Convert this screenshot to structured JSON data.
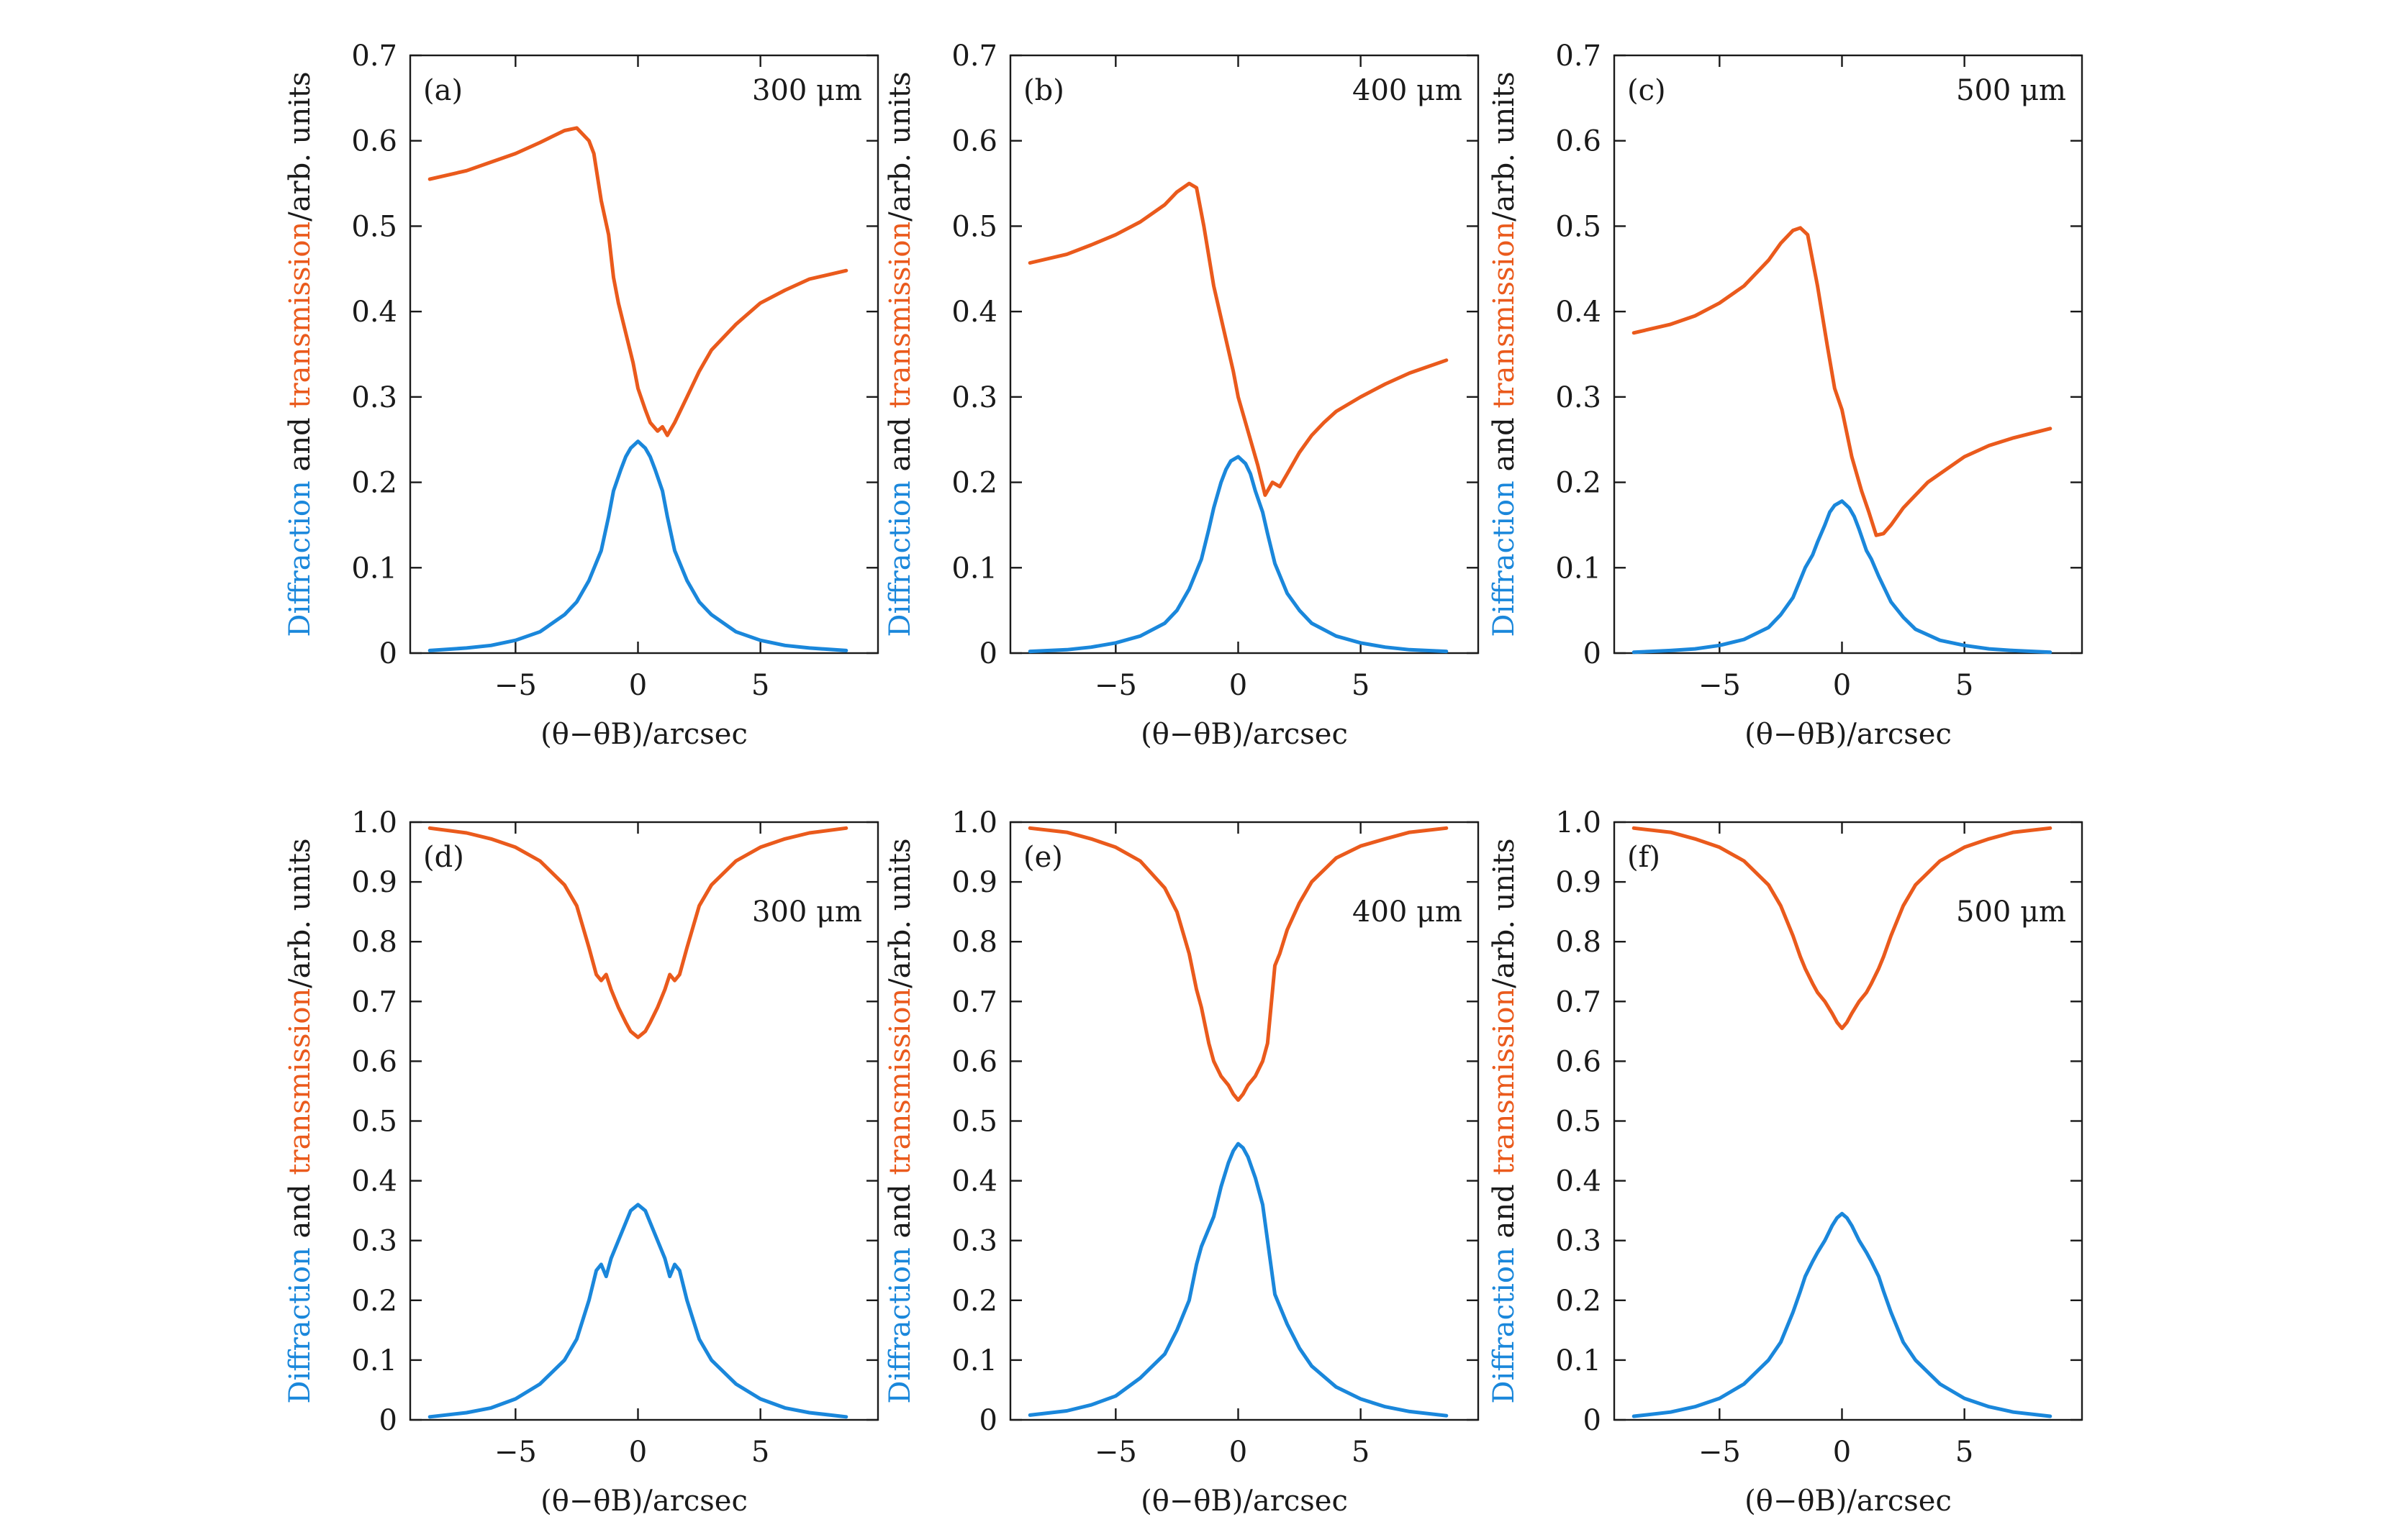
{
  "figure": {
    "colors": {
      "diffraction": "#1a87db",
      "transmission": "#ea5a1c",
      "axis": "#1a1a1a"
    },
    "ylabel_parts": [
      "Diffraction",
      " and ",
      "transmission",
      "/arb. units"
    ],
    "xlabel": "(θ−θB)/arcsec",
    "x_ticks": [
      "−5",
      "0",
      "5"
    ],
    "y_ticks_top": [
      "0",
      "0.1",
      "0.2",
      "0.3",
      "0.4",
      "0.5",
      "0.6",
      "0.7"
    ],
    "y_ticks_bottom": [
      "0",
      "0.1",
      "0.2",
      "0.3",
      "0.4",
      "0.5",
      "0.6",
      "0.7",
      "0.8",
      "0.9",
      "1.0"
    ]
  },
  "chart_data": [
    {
      "type": "line",
      "panel": "(a)",
      "thickness": "300 μm",
      "xlim": [
        -9.3,
        9.8
      ],
      "ylim": [
        0,
        0.7
      ],
      "xticks": [
        -5,
        0,
        5
      ],
      "yticks": [
        0,
        0.1,
        0.2,
        0.3,
        0.4,
        0.5,
        0.6,
        0.7
      ],
      "xlabel": "(θ−θB)/arcsec",
      "ylabel": "Diffraction and transmission/arb. units",
      "series": [
        {
          "role": "diffraction",
          "color": "#1a87db",
          "x": [
            -8.5,
            -7,
            -6,
            -5,
            -4,
            -3,
            -2.5,
            -2,
            -1.5,
            -1.2,
            -1,
            -0.7,
            -0.5,
            -0.3,
            0,
            0.3,
            0.5,
            0.7,
            1,
            1.2,
            1.5,
            2,
            2.5,
            3,
            4,
            5,
            6,
            7,
            8.5
          ],
          "y": [
            0.003,
            0.006,
            0.009,
            0.015,
            0.025,
            0.045,
            0.06,
            0.085,
            0.12,
            0.16,
            0.19,
            0.215,
            0.23,
            0.24,
            0.248,
            0.24,
            0.23,
            0.215,
            0.19,
            0.16,
            0.12,
            0.085,
            0.06,
            0.045,
            0.025,
            0.015,
            0.009,
            0.006,
            0.003
          ]
        },
        {
          "role": "transmission",
          "color": "#ea5a1c",
          "x": [
            -8.5,
            -7,
            -6,
            -5,
            -4,
            -3.5,
            -3,
            -2.5,
            -2,
            -1.8,
            -1.5,
            -1.2,
            -1,
            -0.8,
            -0.5,
            -0.2,
            0,
            0.3,
            0.5,
            0.8,
            1,
            1.2,
            1.5,
            2,
            2.5,
            3,
            4,
            5,
            6,
            7,
            8.5
          ],
          "y": [
            0.555,
            0.565,
            0.575,
            0.585,
            0.598,
            0.605,
            0.612,
            0.615,
            0.6,
            0.585,
            0.53,
            0.49,
            0.44,
            0.41,
            0.375,
            0.34,
            0.31,
            0.285,
            0.27,
            0.26,
            0.265,
            0.255,
            0.27,
            0.3,
            0.33,
            0.355,
            0.385,
            0.41,
            0.425,
            0.438,
            0.448
          ]
        }
      ]
    },
    {
      "type": "line",
      "panel": "(b)",
      "thickness": "400 μm",
      "xlim": [
        -9.3,
        9.8
      ],
      "ylim": [
        0,
        0.7
      ],
      "xticks": [
        -5,
        0,
        5
      ],
      "yticks": [
        0,
        0.1,
        0.2,
        0.3,
        0.4,
        0.5,
        0.6,
        0.7
      ],
      "xlabel": "(θ−θB)/arcsec",
      "ylabel": "Diffraction and transmission/arb. units",
      "series": [
        {
          "role": "diffraction",
          "color": "#1a87db",
          "x": [
            -8.5,
            -7,
            -6,
            -5,
            -4,
            -3,
            -2.5,
            -2,
            -1.5,
            -1.2,
            -1,
            -0.7,
            -0.5,
            -0.3,
            0,
            0.3,
            0.5,
            0.7,
            1,
            1.2,
            1.5,
            2,
            2.5,
            3,
            4,
            5,
            6,
            7,
            8.5
          ],
          "y": [
            0.002,
            0.004,
            0.007,
            0.012,
            0.02,
            0.035,
            0.05,
            0.075,
            0.11,
            0.145,
            0.17,
            0.2,
            0.215,
            0.225,
            0.23,
            0.222,
            0.21,
            0.19,
            0.165,
            0.14,
            0.105,
            0.07,
            0.05,
            0.035,
            0.02,
            0.012,
            0.007,
            0.004,
            0.002
          ]
        },
        {
          "role": "transmission",
          "color": "#ea5a1c",
          "x": [
            -8.5,
            -7,
            -6,
            -5,
            -4,
            -3,
            -2.5,
            -2,
            -1.7,
            -1.4,
            -1,
            -0.6,
            -0.2,
            0,
            0.4,
            0.8,
            1.1,
            1.4,
            1.7,
            2,
            2.5,
            3,
            3.5,
            4,
            5,
            6,
            7,
            8.5
          ],
          "y": [
            0.457,
            0.467,
            0.478,
            0.49,
            0.505,
            0.525,
            0.54,
            0.55,
            0.545,
            0.5,
            0.43,
            0.38,
            0.33,
            0.3,
            0.26,
            0.22,
            0.185,
            0.2,
            0.195,
            0.21,
            0.235,
            0.255,
            0.27,
            0.283,
            0.3,
            0.315,
            0.328,
            0.343
          ]
        }
      ]
    },
    {
      "type": "line",
      "panel": "(c)",
      "thickness": "500 μm",
      "xlim": [
        -9.3,
        9.8
      ],
      "ylim": [
        0,
        0.7
      ],
      "xticks": [
        -5,
        0,
        5
      ],
      "yticks": [
        0,
        0.1,
        0.2,
        0.3,
        0.4,
        0.5,
        0.6,
        0.7
      ],
      "xlabel": "(θ−θB)/arcsec",
      "ylabel": "Diffraction and transmission/arb. units",
      "series": [
        {
          "role": "diffraction",
          "color": "#1a87db",
          "x": [
            -8.5,
            -7,
            -6,
            -5,
            -4,
            -3,
            -2.5,
            -2,
            -1.5,
            -1.2,
            -1,
            -0.7,
            -0.5,
            -0.3,
            0,
            0.3,
            0.5,
            0.7,
            1,
            1.2,
            1.5,
            2,
            2.5,
            3,
            4,
            5,
            6,
            7,
            8.5
          ],
          "y": [
            0.001,
            0.003,
            0.005,
            0.009,
            0.016,
            0.03,
            0.045,
            0.065,
            0.1,
            0.115,
            0.13,
            0.15,
            0.165,
            0.173,
            0.178,
            0.17,
            0.16,
            0.145,
            0.12,
            0.11,
            0.09,
            0.06,
            0.042,
            0.028,
            0.015,
            0.009,
            0.005,
            0.003,
            0.001
          ]
        },
        {
          "role": "transmission",
          "color": "#ea5a1c",
          "x": [
            -8.5,
            -7,
            -6,
            -5,
            -4,
            -3,
            -2.5,
            -2,
            -1.7,
            -1.4,
            -1,
            -0.6,
            -0.3,
            0,
            0.4,
            0.8,
            1.1,
            1.4,
            1.7,
            2,
            2.5,
            3,
            3.5,
            4,
            5,
            6,
            7,
            8.5
          ],
          "y": [
            0.375,
            0.385,
            0.395,
            0.41,
            0.43,
            0.46,
            0.48,
            0.495,
            0.498,
            0.49,
            0.43,
            0.36,
            0.31,
            0.285,
            0.23,
            0.19,
            0.165,
            0.138,
            0.14,
            0.15,
            0.17,
            0.185,
            0.2,
            0.21,
            0.23,
            0.243,
            0.252,
            0.263
          ]
        }
      ]
    },
    {
      "type": "line",
      "panel": "(d)",
      "thickness": "300 μm",
      "xlim": [
        -9.3,
        9.8
      ],
      "ylim": [
        0,
        1.0
      ],
      "xticks": [
        -5,
        0,
        5
      ],
      "yticks": [
        0,
        0.1,
        0.2,
        0.3,
        0.4,
        0.5,
        0.6,
        0.7,
        0.8,
        0.9,
        1.0
      ],
      "xlabel": "(θ−θB)/arcsec",
      "ylabel": "Diffraction and transmission/arb. units",
      "series": [
        {
          "role": "diffraction",
          "color": "#1a87db",
          "x": [
            -8.5,
            -7,
            -6,
            -5,
            -4,
            -3,
            -2.5,
            -2,
            -1.7,
            -1.5,
            -1.3,
            -1.1,
            -0.8,
            -0.5,
            -0.3,
            0,
            0.3,
            0.5,
            0.8,
            1.1,
            1.3,
            1.5,
            1.7,
            2,
            2.5,
            3,
            4,
            5,
            6,
            7,
            8.5
          ],
          "y": [
            0.005,
            0.012,
            0.02,
            0.035,
            0.06,
            0.1,
            0.135,
            0.2,
            0.25,
            0.26,
            0.24,
            0.27,
            0.3,
            0.33,
            0.35,
            0.36,
            0.35,
            0.33,
            0.3,
            0.27,
            0.24,
            0.26,
            0.25,
            0.2,
            0.135,
            0.1,
            0.06,
            0.035,
            0.02,
            0.012,
            0.005
          ]
        },
        {
          "role": "transmission",
          "color": "#ea5a1c",
          "x": [
            -8.5,
            -7,
            -6,
            -5,
            -4,
            -3,
            -2.5,
            -2,
            -1.7,
            -1.5,
            -1.3,
            -1.1,
            -0.8,
            -0.5,
            -0.3,
            0,
            0.3,
            0.5,
            0.8,
            1.1,
            1.3,
            1.5,
            1.7,
            2,
            2.5,
            3,
            4,
            5,
            6,
            7,
            8.5
          ],
          "y": [
            0.99,
            0.982,
            0.972,
            0.958,
            0.935,
            0.895,
            0.86,
            0.79,
            0.745,
            0.735,
            0.745,
            0.72,
            0.69,
            0.665,
            0.65,
            0.64,
            0.65,
            0.665,
            0.69,
            0.72,
            0.745,
            0.735,
            0.745,
            0.79,
            0.86,
            0.895,
            0.935,
            0.958,
            0.972,
            0.982,
            0.99
          ]
        }
      ]
    },
    {
      "type": "line",
      "panel": "(e)",
      "thickness": "400 μm",
      "xlim": [
        -9.3,
        9.8
      ],
      "ylim": [
        0,
        1.0
      ],
      "xticks": [
        -5,
        0,
        5
      ],
      "yticks": [
        0,
        0.1,
        0.2,
        0.3,
        0.4,
        0.5,
        0.6,
        0.7,
        0.8,
        0.9,
        1.0
      ],
      "xlabel": "(θ−θB)/arcsec",
      "ylabel": "Diffraction and transmission/arb. units",
      "series": [
        {
          "role": "diffraction",
          "color": "#1a87db",
          "x": [
            -8.5,
            -7,
            -6,
            -5,
            -4,
            -3,
            -2.5,
            -2,
            -1.7,
            -1.5,
            -1.2,
            -1,
            -0.7,
            -0.4,
            -0.2,
            0,
            0.2,
            0.4,
            0.7,
            1,
            1.2,
            1.5,
            1.7,
            2,
            2.5,
            3,
            4,
            5,
            6,
            7,
            8.5
          ],
          "y": [
            0.008,
            0.015,
            0.025,
            0.04,
            0.07,
            0.11,
            0.15,
            0.2,
            0.26,
            0.29,
            0.32,
            0.34,
            0.39,
            0.43,
            0.45,
            0.462,
            0.455,
            0.44,
            0.405,
            0.36,
            0.3,
            0.21,
            0.19,
            0.16,
            0.12,
            0.09,
            0.055,
            0.035,
            0.022,
            0.014,
            0.007
          ]
        },
        {
          "role": "transmission",
          "color": "#ea5a1c",
          "x": [
            -8.5,
            -7,
            -6,
            -5,
            -4,
            -3,
            -2.5,
            -2,
            -1.7,
            -1.5,
            -1.2,
            -1,
            -0.7,
            -0.4,
            -0.2,
            0,
            0.2,
            0.4,
            0.7,
            1,
            1.2,
            1.5,
            1.7,
            2,
            2.5,
            3,
            4,
            5,
            6,
            7,
            8.5
          ],
          "y": [
            0.99,
            0.983,
            0.972,
            0.958,
            0.935,
            0.89,
            0.85,
            0.78,
            0.72,
            0.69,
            0.63,
            0.6,
            0.575,
            0.56,
            0.545,
            0.535,
            0.545,
            0.56,
            0.575,
            0.6,
            0.63,
            0.76,
            0.78,
            0.82,
            0.865,
            0.9,
            0.94,
            0.96,
            0.972,
            0.983,
            0.99
          ]
        }
      ]
    },
    {
      "type": "line",
      "panel": "(f)",
      "thickness": "500 μm",
      "xlim": [
        -9.3,
        9.8
      ],
      "ylim": [
        0,
        1.0
      ],
      "xticks": [
        -5,
        0,
        5
      ],
      "yticks": [
        0,
        0.1,
        0.2,
        0.3,
        0.4,
        0.5,
        0.6,
        0.7,
        0.8,
        0.9,
        1.0
      ],
      "xlabel": "(θ−θB)/arcsec",
      "ylabel": "Diffraction and transmission/arb. units",
      "series": [
        {
          "role": "diffraction",
          "color": "#1a87db",
          "x": [
            -8.5,
            -7,
            -6,
            -5,
            -4,
            -3,
            -2.5,
            -2,
            -1.7,
            -1.5,
            -1.2,
            -1,
            -0.7,
            -0.4,
            -0.2,
            0,
            0.2,
            0.4,
            0.7,
            1,
            1.2,
            1.5,
            1.7,
            2,
            2.5,
            3,
            4,
            5,
            6,
            7,
            8.5
          ],
          "y": [
            0.006,
            0.013,
            0.022,
            0.036,
            0.06,
            0.1,
            0.13,
            0.18,
            0.215,
            0.24,
            0.265,
            0.28,
            0.3,
            0.325,
            0.338,
            0.345,
            0.338,
            0.325,
            0.3,
            0.28,
            0.265,
            0.24,
            0.215,
            0.18,
            0.13,
            0.1,
            0.06,
            0.036,
            0.022,
            0.013,
            0.006
          ]
        },
        {
          "role": "transmission",
          "color": "#ea5a1c",
          "x": [
            -8.5,
            -7,
            -6,
            -5,
            -4,
            -3,
            -2.5,
            -2,
            -1.7,
            -1.5,
            -1.2,
            -1,
            -0.7,
            -0.4,
            -0.2,
            0,
            0.2,
            0.4,
            0.7,
            1,
            1.2,
            1.5,
            1.7,
            2,
            2.5,
            3,
            4,
            5,
            6,
            7,
            8.5
          ],
          "y": [
            0.99,
            0.983,
            0.972,
            0.958,
            0.935,
            0.895,
            0.86,
            0.81,
            0.775,
            0.755,
            0.73,
            0.715,
            0.7,
            0.68,
            0.665,
            0.655,
            0.665,
            0.68,
            0.7,
            0.715,
            0.73,
            0.755,
            0.775,
            0.81,
            0.86,
            0.895,
            0.935,
            0.958,
            0.972,
            0.983,
            0.99
          ]
        }
      ]
    }
  ]
}
